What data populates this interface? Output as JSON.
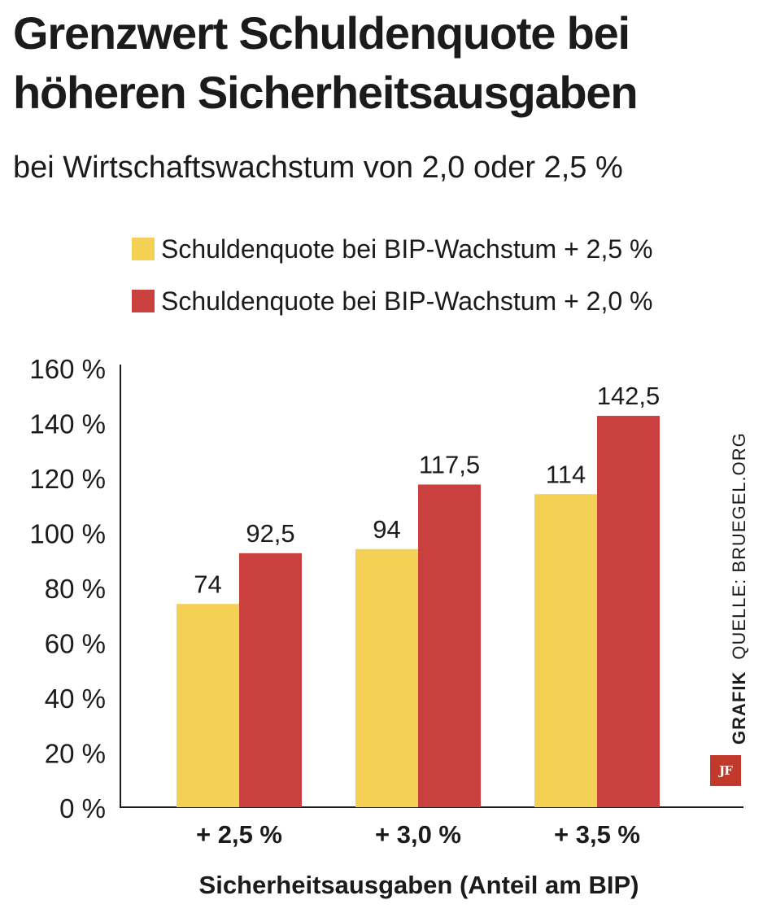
{
  "chart_data": {
    "type": "bar",
    "title": "Grenzwert Schuldenquote bei höheren Sicherheitsausgaben",
    "subtitle": "bei Wirtschaftswachstum von 2,0 oder 2,5 %",
    "xlabel": "Sicherheitsausgaben (Anteil am BIP)",
    "ylabel": "",
    "categories": [
      "+ 2,5 %",
      "+ 3,0 %",
      "+ 3,5 %"
    ],
    "series": [
      {
        "name": "Schuldenquote bei BIP-Wachstum + 2,5 %",
        "color": "#f4d155",
        "values": [
          74,
          94,
          114
        ],
        "labels": [
          "74",
          "94",
          "114"
        ]
      },
      {
        "name": "Schuldenquote bei BIP-Wachstum + 2,0 %",
        "color": "#c9403f",
        "values": [
          92.5,
          117.5,
          142.5
        ],
        "labels": [
          "92,5",
          "117,5",
          "142,5"
        ]
      }
    ],
    "ylim": [
      0,
      160
    ],
    "yticks": [
      0,
      20,
      40,
      60,
      80,
      100,
      120,
      140,
      160
    ],
    "ytick_labels": [
      "0 %",
      "20 %",
      "40 %",
      "60 %",
      "80 %",
      "100 %",
      "120 %",
      "140 %",
      "160 %"
    ],
    "grid": false,
    "legend_position": "top"
  },
  "credit": {
    "grafik": "GRAFIK",
    "source": "QUELLE: BRUEGEL.ORG",
    "logo": "JF",
    "logo_color": "#c0392b"
  }
}
